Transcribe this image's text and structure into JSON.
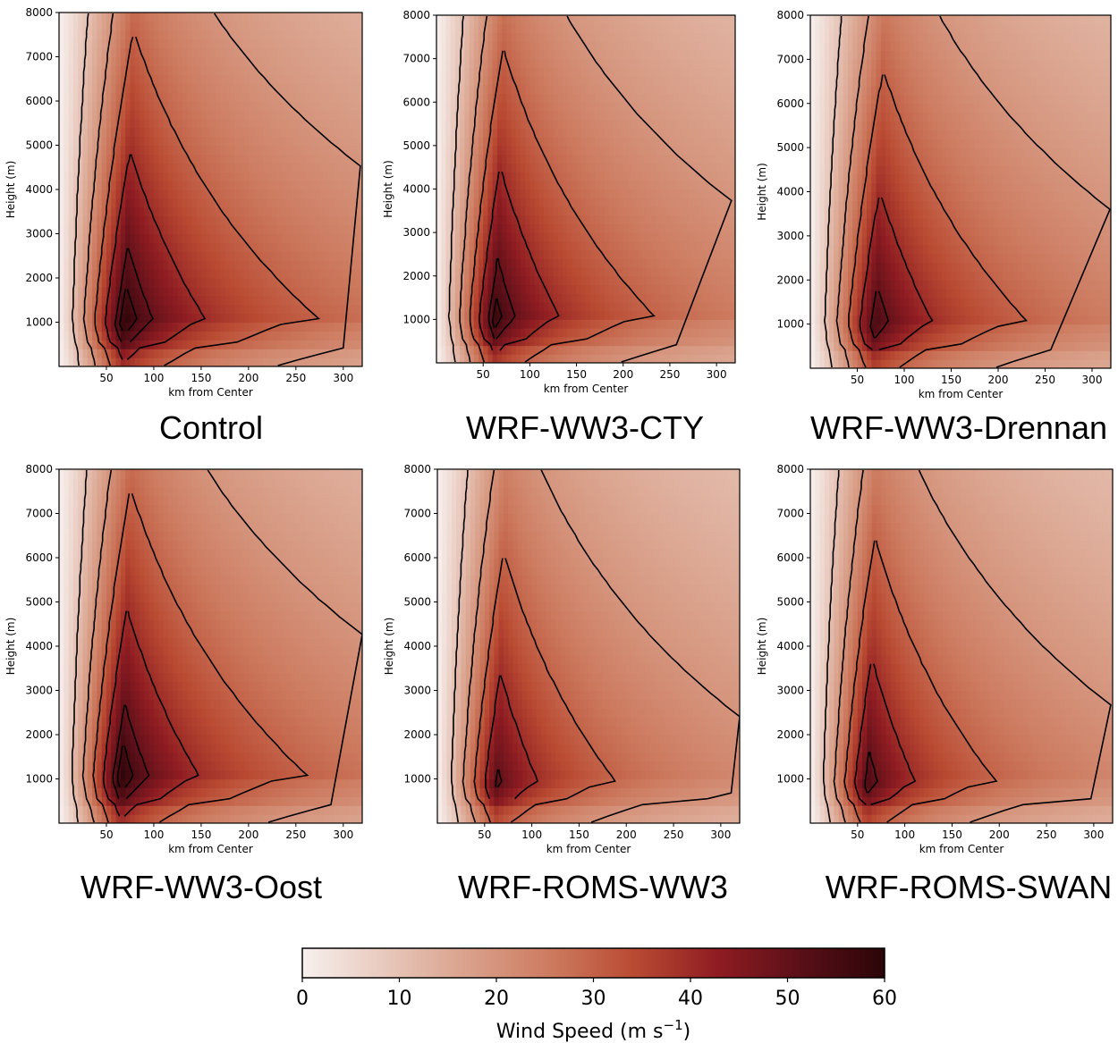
{
  "chart_data": [
    {
      "type": "heatmap",
      "title": "Control",
      "xlabel": "km from Center",
      "ylabel": "Height (m)",
      "xlim": [
        0,
        320
      ],
      "ylim": [
        0,
        8000
      ],
      "x_ticks": [
        50,
        100,
        150,
        200,
        250,
        300
      ],
      "y_ticks": [
        1000,
        2000,
        3000,
        4000,
        5000,
        6000,
        7000,
        8000
      ],
      "rmw_km": 68,
      "peak_ms": 60,
      "peak_height_m": 1000,
      "outer_contour_km": 300
    },
    {
      "type": "heatmap",
      "title": "WRF-WW3-CTY",
      "xlabel": "km from Center",
      "ylabel": "Height (m)",
      "xlim": [
        0,
        320
      ],
      "ylim": [
        0,
        8000
      ],
      "x_ticks": [
        50,
        100,
        150,
        200,
        250,
        300
      ],
      "y_ticks": [
        1000,
        2000,
        3000,
        4000,
        5000,
        6000,
        7000,
        8000
      ],
      "rmw_km": 62,
      "peak_ms": 58,
      "peak_height_m": 1000,
      "outer_contour_km": 300
    },
    {
      "type": "heatmap",
      "title": "WRF-WW3-Drennan",
      "xlabel": "km from Center",
      "ylabel": "Height (m)",
      "xlim": [
        0,
        320
      ],
      "ylim": [
        0,
        8000
      ],
      "x_ticks": [
        50,
        100,
        150,
        200,
        250,
        300
      ],
      "y_ticks": [
        1000,
        2000,
        3000,
        4000,
        5000,
        6000,
        7000,
        8000
      ],
      "rmw_km": 68,
      "peak_ms": 55,
      "peak_height_m": 1000,
      "outer_contour_km": 290
    },
    {
      "type": "heatmap",
      "title": "WRF-WW3-Oost",
      "xlabel": "km from Center",
      "ylabel": "Height (m)",
      "xlim": [
        0,
        320
      ],
      "ylim": [
        0,
        8000
      ],
      "x_ticks": [
        50,
        100,
        150,
        200,
        250,
        300
      ],
      "y_ticks": [
        1000,
        2000,
        3000,
        4000,
        5000,
        6000,
        7000,
        8000
      ],
      "rmw_km": 65,
      "peak_ms": 60,
      "peak_height_m": 1000,
      "outer_contour_km": 300
    },
    {
      "type": "heatmap",
      "title": "WRF-ROMS-WW3",
      "xlabel": "km from Center",
      "ylabel": "Height (m)",
      "xlim": [
        0,
        320
      ],
      "ylim": [
        0,
        8000
      ],
      "x_ticks": [
        50,
        100,
        150,
        200,
        250,
        300
      ],
      "y_ticks": [
        1000,
        2000,
        3000,
        4000,
        5000,
        6000,
        7000,
        8000
      ],
      "rmw_km": 62,
      "peak_ms": 52,
      "peak_height_m": 900,
      "outer_contour_km": 260
    },
    {
      "type": "heatmap",
      "title": "WRF-ROMS-SWAN",
      "xlabel": "km from Center",
      "ylabel": "Height (m)",
      "xlim": [
        0,
        320
      ],
      "ylim": [
        0,
        8000
      ],
      "x_ticks": [
        50,
        100,
        150,
        200,
        250,
        300
      ],
      "y_ticks": [
        1000,
        2000,
        3000,
        4000,
        5000,
        6000,
        7000,
        8000
      ],
      "rmw_km": 60,
      "peak_ms": 54,
      "peak_height_m": 900,
      "outer_contour_km": 265
    }
  ],
  "colorbar": {
    "label": "Wind Speed (m s⁻¹)",
    "label_base": "Wind Speed (m s",
    "label_exp": "−1",
    "label_close": ")",
    "ticks": [
      0,
      10,
      20,
      30,
      40,
      50,
      60
    ],
    "range": [
      0,
      60
    ],
    "colors": [
      "#f7f0ee",
      "#e8c8bc",
      "#d9a08a",
      "#cc7a5f",
      "#b94a32",
      "#8e1c22",
      "#5a0f18",
      "#2b0508"
    ]
  },
  "contour_levels_ms": [
    10,
    20,
    30,
    40,
    50,
    55
  ],
  "contour_color": "#000000"
}
